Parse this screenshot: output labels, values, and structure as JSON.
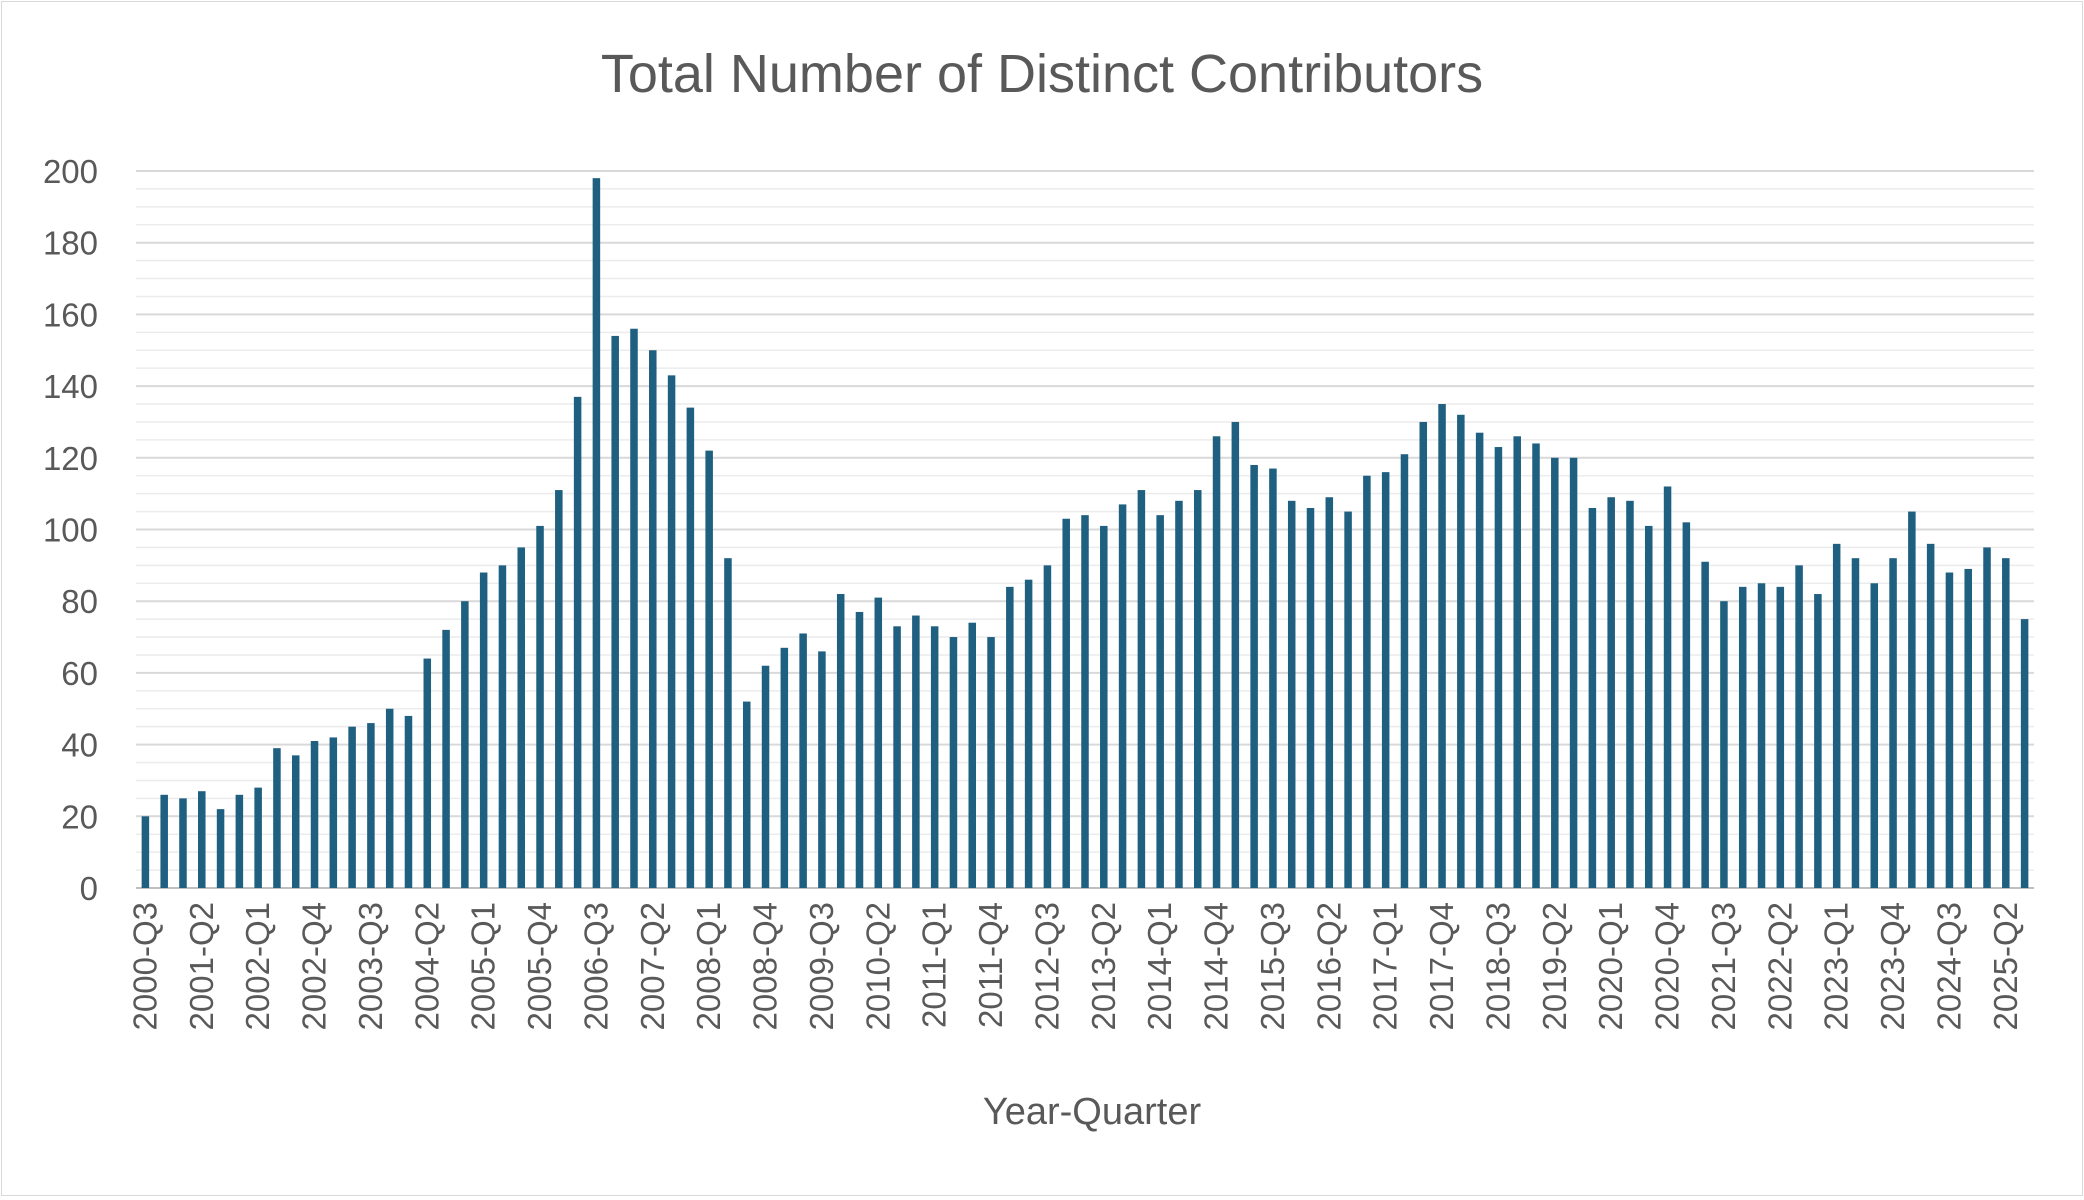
{
  "chart_data": {
    "type": "bar",
    "title": "Total Number of Distinct Contributors",
    "xlabel": "Year-Quarter",
    "ylabel": "",
    "ylim": [
      0,
      200
    ],
    "yticks": [
      0,
      20,
      40,
      60,
      80,
      100,
      120,
      140,
      160,
      180,
      200
    ],
    "minor_grid_step": 5,
    "grid": true,
    "legend": "none",
    "bar_color": "#1F5F7F",
    "categories": [
      "2000-Q3",
      "2000-Q4",
      "2001-Q1",
      "2001-Q2",
      "2001-Q3",
      "2001-Q4",
      "2002-Q1",
      "2002-Q2",
      "2002-Q3",
      "2002-Q4",
      "2003-Q1",
      "2003-Q2",
      "2003-Q3",
      "2003-Q4",
      "2004-Q1",
      "2004-Q2",
      "2004-Q3",
      "2004-Q4",
      "2005-Q1",
      "2005-Q2",
      "2005-Q3",
      "2005-Q4",
      "2006-Q1",
      "2006-Q2",
      "2006-Q3",
      "2006-Q4",
      "2007-Q1",
      "2007-Q2",
      "2007-Q3",
      "2007-Q4",
      "2008-Q1",
      "2008-Q2",
      "2008-Q3",
      "2008-Q4",
      "2009-Q1",
      "2009-Q2",
      "2009-Q3",
      "2009-Q4",
      "2010-Q1",
      "2010-Q2",
      "2010-Q3",
      "2010-Q4",
      "2011-Q1",
      "2011-Q2",
      "2011-Q3",
      "2011-Q4",
      "2012-Q1",
      "2012-Q2",
      "2012-Q3",
      "2012-Q4",
      "2013-Q1",
      "2013-Q2",
      "2013-Q3",
      "2013-Q4",
      "2014-Q1",
      "2014-Q2",
      "2014-Q3",
      "2014-Q4",
      "2015-Q1",
      "2015-Q2",
      "2015-Q3",
      "2015-Q4",
      "2016-Q1",
      "2016-Q2",
      "2016-Q3",
      "2016-Q4",
      "2017-Q1",
      "2017-Q2",
      "2017-Q3",
      "2017-Q4",
      "2018-Q1",
      "2018-Q2",
      "2018-Q3",
      "2018-Q4",
      "2019-Q1",
      "2019-Q2",
      "2019-Q3",
      "2019-Q4",
      "2020-Q1",
      "2020-Q2",
      "2020-Q3",
      "2020-Q4",
      "2021-Q1",
      "2021-Q2",
      "2021-Q3",
      "2021-Q4",
      "2022-Q1",
      "2022-Q2",
      "2022-Q3",
      "2022-Q4",
      "2023-Q1",
      "2023-Q2",
      "2023-Q3",
      "2023-Q4",
      "2024-Q1",
      "2024-Q2",
      "2024-Q3",
      "2024-Q4",
      "2025-Q1",
      "2025-Q2",
      "2025-Q3"
    ],
    "values": [
      20,
      26,
      25,
      27,
      22,
      26,
      28,
      39,
      37,
      41,
      42,
      45,
      46,
      50,
      48,
      64,
      72,
      80,
      88,
      90,
      95,
      101,
      111,
      137,
      198,
      154,
      156,
      150,
      143,
      134,
      122,
      92,
      52,
      62,
      67,
      71,
      66,
      82,
      77,
      81,
      73,
      76,
      73,
      70,
      74,
      70,
      84,
      86,
      90,
      103,
      104,
      101,
      107,
      111,
      104,
      108,
      111,
      126,
      130,
      118,
      117,
      108,
      106,
      109,
      105,
      115,
      116,
      121,
      130,
      135,
      132,
      127,
      123,
      126,
      124,
      120,
      120,
      106,
      109,
      108,
      101,
      112,
      102,
      91,
      80,
      84,
      85,
      84,
      90,
      82,
      96,
      92,
      85,
      92,
      105,
      96,
      88,
      89,
      95,
      92,
      75
    ],
    "label_every": 3
  }
}
